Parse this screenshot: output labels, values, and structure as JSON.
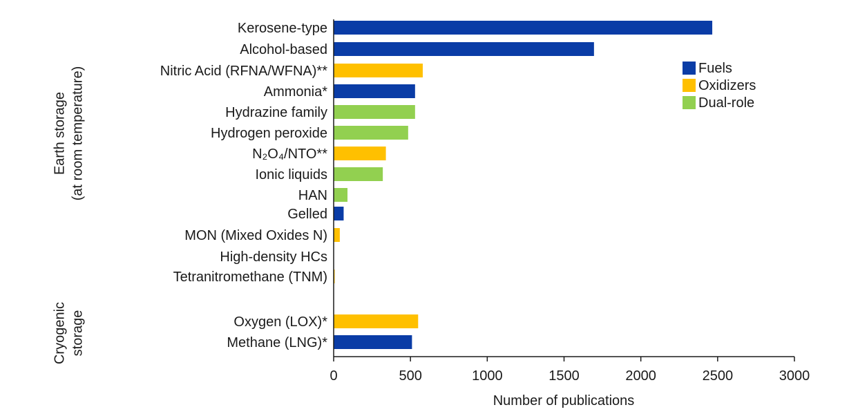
{
  "chart_data": {
    "type": "bar",
    "orientation": "horizontal",
    "xlabel": "Number of publications",
    "xlim": [
      0,
      3000
    ],
    "xticks": [
      "0",
      "500",
      "1000",
      "1500",
      "2000",
      "2500",
      "3000"
    ],
    "grid": false,
    "legend_position": "top-right",
    "colors": {
      "Fuels": "#0a3ca6",
      "Oxidizers": "#ffc000",
      "Dual-role": "#92d050"
    },
    "legend": [
      "Fuels",
      "Oxidizers",
      "Dual-role"
    ],
    "groups": [
      {
        "label_lines": [
          "Earth storage",
          "(at room temperature)"
        ]
      },
      {
        "label_lines": [
          "Cryogenic",
          "storage"
        ]
      }
    ],
    "bars": [
      {
        "label": "Kerosene-type",
        "value": 2465,
        "role": "Fuels"
      },
      {
        "label": "Alcohol-based",
        "value": 1695,
        "role": "Fuels"
      },
      {
        "label": "Nitric Acid (RFNA/WFNA)**",
        "value": 580,
        "role": "Oxidizers"
      },
      {
        "label": "Ammonia*",
        "value": 530,
        "role": "Fuels"
      },
      {
        "label": "Hydrazine family",
        "value": 530,
        "role": "Dual-role"
      },
      {
        "label": "Hydrogen peroxide",
        "value": 485,
        "role": "Dual-role"
      },
      {
        "label": "N₂O₄/NTO**",
        "value": 340,
        "role": "Oxidizers"
      },
      {
        "label": "Ionic liquids",
        "value": 320,
        "role": "Dual-role"
      },
      {
        "label": "HAN",
        "value": 90,
        "role": "Dual-role"
      },
      {
        "label": "Gelled",
        "value": 65,
        "role": "Fuels"
      },
      {
        "label": "MON (Mixed Oxides N)",
        "value": 40,
        "role": "Oxidizers"
      },
      {
        "label": "High-density HCs",
        "value": 0,
        "role": "Fuels"
      },
      {
        "label": "Tetranitromethane (TNM)",
        "value": 3,
        "role": "Oxidizers"
      },
      {
        "label": "Oxygen (LOX)*",
        "value": 550,
        "role": "Oxidizers"
      },
      {
        "label": "Methane (LNG)*",
        "value": 510,
        "role": "Fuels"
      }
    ]
  }
}
